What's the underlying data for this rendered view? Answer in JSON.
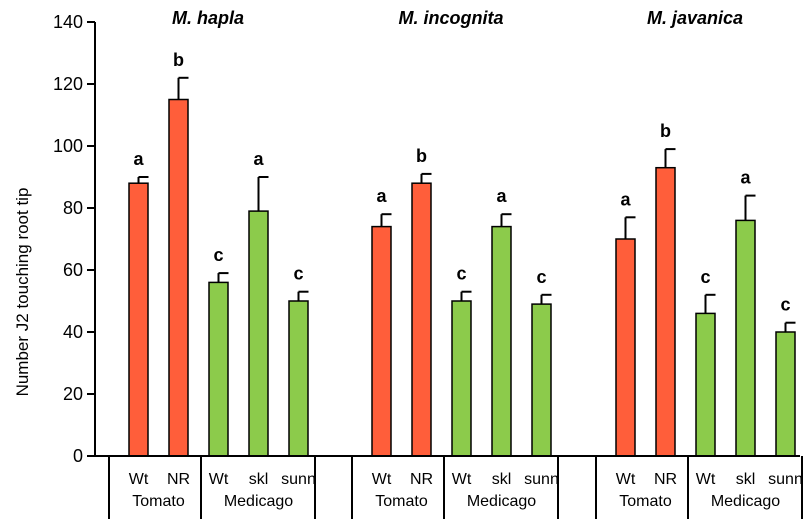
{
  "chart_data": {
    "type": "bar",
    "ylabel": "Number J2 touching root tip",
    "ylim": [
      0,
      140
    ],
    "yticks": [
      0,
      20,
      40,
      60,
      80,
      100,
      120,
      140
    ],
    "grid": false,
    "colors": {
      "tomato": "#FF5E3A",
      "medicago": "#8CCB4B",
      "outline": "#000000"
    },
    "groups": [
      {
        "title": "M. hapla",
        "bars": [
          {
            "label": "Wt",
            "species": "Tomato",
            "value": 88,
            "error": 2,
            "sig": "a"
          },
          {
            "label": "NR",
            "species": "Tomato",
            "value": 115,
            "error": 7,
            "sig": "b"
          },
          {
            "label": "Wt",
            "species": "Medicago",
            "value": 56,
            "error": 3,
            "sig": "c"
          },
          {
            "label": "skl",
            "species": "Medicago",
            "value": 79,
            "error": 11,
            "sig": "a"
          },
          {
            "label": "sunn",
            "species": "Medicago",
            "value": 50,
            "error": 3,
            "sig": "c"
          }
        ]
      },
      {
        "title": "M. incognita",
        "bars": [
          {
            "label": "Wt",
            "species": "Tomato",
            "value": 74,
            "error": 4,
            "sig": "a"
          },
          {
            "label": "NR",
            "species": "Tomato",
            "value": 88,
            "error": 3,
            "sig": "b"
          },
          {
            "label": "Wt",
            "species": "Medicago",
            "value": 50,
            "error": 3,
            "sig": "c"
          },
          {
            "label": "skl",
            "species": "Medicago",
            "value": 74,
            "error": 4,
            "sig": "a"
          },
          {
            "label": "sunn",
            "species": "Medicago",
            "value": 49,
            "error": 3,
            "sig": "c"
          }
        ]
      },
      {
        "title": "M. javanica",
        "bars": [
          {
            "label": "Wt",
            "species": "Tomato",
            "value": 70,
            "error": 7,
            "sig": "a"
          },
          {
            "label": "NR",
            "species": "Tomato",
            "value": 93,
            "error": 6,
            "sig": "b"
          },
          {
            "label": "Wt",
            "species": "Medicago",
            "value": 46,
            "error": 6,
            "sig": "c"
          },
          {
            "label": "skl",
            "species": "Medicago",
            "value": 76,
            "error": 8,
            "sig": "a"
          },
          {
            "label": "sunn",
            "species": "Medicago",
            "value": 40,
            "error": 3,
            "sig": "c"
          }
        ]
      }
    ]
  }
}
